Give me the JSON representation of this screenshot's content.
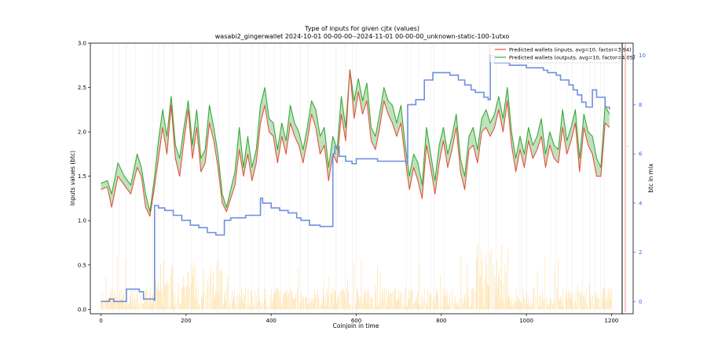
{
  "chart_data": {
    "type": "line",
    "title": "Type of inputs for given cjtx (values)",
    "subtitle": "wasabi2_gingerwallet 2024-10-01 00-00-00--2024-11-01 00-00-00_unknown-static-100-1utxo",
    "xlabel": "Coinjoin in time",
    "ylabel": "Inputs values (btc)",
    "y2label": "btc in mix",
    "xlim": [
      -25,
      1225
    ],
    "ylim": [
      -0.05,
      3.0
    ],
    "y2lim": [
      -0.5,
      10.5
    ],
    "x_ticks": [
      "0",
      "200",
      "400",
      "600",
      "800",
      "1000",
      "1200"
    ],
    "y_ticks": [
      "0.0",
      "0.5",
      "1.0",
      "1.5",
      "2.0",
      "2.5",
      "3.0"
    ],
    "y2_ticks": [
      "0",
      "2",
      "4",
      "6",
      "8",
      "10"
    ],
    "legend_position": "top-right",
    "legend": [
      "Predicted wallets (inputs, avg=10, factor=3.94)",
      "Predicted wallets (outputs, avg=10, factor=4.05)"
    ],
    "colors": {
      "inputs": "#e8503a",
      "outputs": "#3aa83a",
      "fill": "#a8d8a8",
      "mix": "#6f8fe0",
      "bars": "#ffd27a",
      "vlines": "#cfcfcf",
      "redmark": "#e8503a"
    },
    "series": [
      {
        "name": "Predicted wallets (inputs, avg=10, factor=3.94)",
        "axis": "left",
        "x": [
          0,
          15,
          25,
          40,
          55,
          70,
          85,
          95,
          105,
          115,
          125,
          135,
          145,
          155,
          165,
          175,
          185,
          195,
          205,
          215,
          225,
          235,
          245,
          255,
          265,
          275,
          285,
          295,
          305,
          315,
          325,
          335,
          345,
          355,
          365,
          375,
          385,
          395,
          405,
          415,
          425,
          435,
          445,
          455,
          465,
          475,
          485,
          495,
          505,
          515,
          525,
          535,
          545,
          555,
          565,
          575,
          585,
          595,
          605,
          615,
          625,
          635,
          645,
          655,
          665,
          675,
          685,
          695,
          705,
          715,
          725,
          735,
          745,
          755,
          765,
          775,
          785,
          795,
          805,
          815,
          825,
          835,
          845,
          855,
          865,
          875,
          885,
          895,
          905,
          915,
          925,
          935,
          945,
          955,
          965,
          975,
          985,
          995,
          1005,
          1015,
          1025,
          1035,
          1045,
          1055,
          1065,
          1075,
          1085,
          1095,
          1105,
          1115,
          1125,
          1135,
          1145,
          1155,
          1165,
          1175,
          1185,
          1195
        ],
        "values": [
          1.35,
          1.38,
          1.15,
          1.5,
          1.4,
          1.3,
          1.6,
          1.5,
          1.15,
          1.05,
          1.35,
          1.7,
          2.05,
          1.75,
          2.3,
          1.7,
          1.5,
          1.9,
          2.25,
          1.7,
          2.05,
          1.55,
          1.65,
          2.1,
          1.9,
          1.6,
          1.2,
          1.1,
          1.25,
          1.4,
          1.8,
          1.5,
          1.75,
          1.45,
          1.65,
          2.1,
          2.3,
          2.0,
          1.95,
          1.65,
          1.95,
          1.75,
          2.1,
          1.95,
          1.85,
          1.65,
          1.9,
          2.2,
          2.05,
          1.75,
          1.85,
          1.45,
          1.75,
          1.65,
          2.2,
          1.9,
          2.7,
          2.15,
          2.45,
          2.2,
          2.35,
          1.9,
          1.8,
          2.05,
          2.35,
          2.2,
          2.1,
          1.95,
          2.1,
          1.7,
          1.35,
          1.6,
          1.45,
          1.25,
          1.85,
          1.6,
          1.3,
          1.65,
          1.9,
          1.6,
          1.8,
          2.05,
          1.55,
          1.35,
          1.8,
          1.85,
          1.65,
          2.0,
          2.05,
          1.95,
          2.05,
          2.25,
          2.0,
          2.35,
          1.85,
          1.55,
          1.8,
          1.6,
          1.9,
          1.7,
          1.8,
          1.95,
          1.6,
          1.85,
          1.7,
          1.65,
          2.05,
          1.75,
          1.9,
          2.1,
          1.55,
          2.05,
          1.85,
          1.75,
          1.5,
          1.5,
          2.1,
          2.05
        ]
      },
      {
        "name": "Predicted wallets (outputs, avg=10, factor=4.05)",
        "axis": "left",
        "x": [
          0,
          15,
          25,
          40,
          55,
          70,
          85,
          95,
          105,
          115,
          125,
          135,
          145,
          155,
          165,
          175,
          185,
          195,
          205,
          215,
          225,
          235,
          245,
          255,
          265,
          275,
          285,
          295,
          305,
          315,
          325,
          335,
          345,
          355,
          365,
          375,
          385,
          395,
          405,
          415,
          425,
          435,
          445,
          455,
          465,
          475,
          485,
          495,
          505,
          515,
          525,
          535,
          545,
          555,
          565,
          575,
          585,
          595,
          605,
          615,
          625,
          635,
          645,
          655,
          665,
          675,
          685,
          695,
          705,
          715,
          725,
          735,
          745,
          755,
          765,
          775,
          785,
          795,
          805,
          815,
          825,
          835,
          845,
          855,
          865,
          875,
          885,
          895,
          905,
          915,
          925,
          935,
          945,
          955,
          965,
          975,
          985,
          995,
          1005,
          1015,
          1025,
          1035,
          1045,
          1055,
          1065,
          1075,
          1085,
          1095,
          1105,
          1115,
          1125,
          1135,
          1145,
          1155,
          1165,
          1175,
          1185,
          1195
        ],
        "values": [
          1.42,
          1.45,
          1.3,
          1.65,
          1.5,
          1.4,
          1.75,
          1.6,
          1.3,
          1.1,
          1.45,
          1.9,
          2.25,
          1.95,
          2.4,
          1.85,
          1.7,
          2.05,
          2.35,
          1.85,
          2.25,
          1.7,
          1.8,
          2.3,
          2.05,
          1.75,
          1.3,
          1.15,
          1.35,
          1.55,
          2.05,
          1.6,
          1.95,
          1.6,
          1.8,
          2.3,
          2.5,
          2.15,
          2.1,
          1.8,
          2.1,
          1.9,
          2.3,
          2.1,
          2.0,
          1.8,
          2.05,
          2.35,
          2.25,
          1.95,
          2.05,
          1.6,
          1.95,
          1.8,
          2.4,
          2.05,
          2.7,
          2.35,
          2.6,
          2.35,
          2.55,
          2.05,
          1.95,
          2.2,
          2.5,
          2.35,
          2.3,
          2.1,
          2.3,
          1.85,
          1.5,
          1.75,
          1.65,
          1.4,
          2.05,
          1.75,
          1.45,
          1.85,
          2.05,
          1.75,
          1.95,
          2.2,
          1.7,
          1.5,
          1.95,
          2.05,
          1.8,
          2.15,
          2.25,
          2.1,
          2.2,
          2.4,
          2.15,
          2.5,
          2.0,
          1.7,
          1.95,
          1.75,
          2.05,
          1.85,
          1.95,
          2.15,
          1.75,
          2.0,
          1.85,
          1.8,
          2.25,
          1.9,
          2.05,
          2.25,
          1.7,
          2.2,
          2.0,
          1.95,
          1.7,
          1.6,
          2.3,
          2.2
        ]
      },
      {
        "name": "btc in mix",
        "axis": "right",
        "x": [
          0,
          10,
          20,
          30,
          45,
          60,
          70,
          90,
          100,
          125,
          126,
          135,
          150,
          170,
          190,
          210,
          230,
          250,
          270,
          280,
          285,
          290,
          305,
          320,
          340,
          360,
          375,
          380,
          400,
          420,
          440,
          460,
          470,
          490,
          500,
          515,
          520,
          540,
          545,
          550,
          560,
          575,
          585,
          590,
          600,
          630,
          650,
          680,
          700,
          720,
          721,
          740,
          760,
          770,
          780,
          800,
          820,
          840,
          855,
          870,
          880,
          900,
          910,
          915,
          925,
          940,
          960,
          980,
          1000,
          1020,
          1040,
          1050,
          1070,
          1080,
          1100,
          1110,
          1120,
          1130,
          1140,
          1155,
          1165,
          1175,
          1185,
          1195
        ],
        "values": [
          0.0,
          0.0,
          0.1,
          0.0,
          0.0,
          0.5,
          0.5,
          0.4,
          0.1,
          0.05,
          3.9,
          3.8,
          3.7,
          3.5,
          3.3,
          3.1,
          3.0,
          2.8,
          2.7,
          2.7,
          2.7,
          3.3,
          3.4,
          3.4,
          3.5,
          3.5,
          4.2,
          4.0,
          3.8,
          3.7,
          3.6,
          3.4,
          3.3,
          3.1,
          3.1,
          3.05,
          3.05,
          3.05,
          6.0,
          6.3,
          5.9,
          5.7,
          5.7,
          5.6,
          5.8,
          5.8,
          5.7,
          5.7,
          5.7,
          5.6,
          8.0,
          8.2,
          9.0,
          9.0,
          9.3,
          9.3,
          9.2,
          9.0,
          8.8,
          8.6,
          8.5,
          8.3,
          8.2,
          10.0,
          9.7,
          9.7,
          9.6,
          9.6,
          9.5,
          9.5,
          9.4,
          9.3,
          9.2,
          9.0,
          8.8,
          8.6,
          8.4,
          8.1,
          7.9,
          8.6,
          8.3,
          8.3,
          7.9,
          7.8
        ]
      }
    ]
  }
}
